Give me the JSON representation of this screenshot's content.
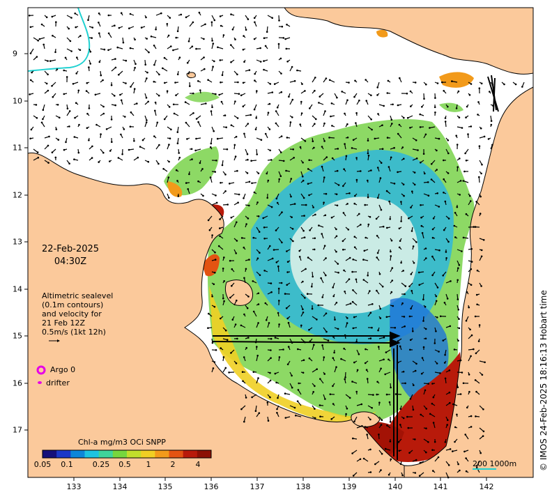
{
  "map": {
    "date": "22-Feb-2025",
    "time": "04:30Z",
    "altimetry_lines": [
      "Altimetric sealevel",
      "(0.1m contours)",
      "and velocity for",
      "21 Feb 12Z",
      "0.5m/s (1kt 12h)"
    ],
    "legend": {
      "argo": "Argo 0",
      "drifter": "drifter"
    },
    "colorbar": {
      "title": "Chl-a mg/m3 OCi SNPP",
      "ticks": [
        "0.05",
        "0.1",
        "0.25",
        "0.5",
        "1",
        "2",
        "4"
      ],
      "colors": [
        "#15107a",
        "#1b38c8",
        "#0e86d8",
        "#1ec3e0",
        "#3fd49a",
        "#76d63e",
        "#c2dd2c",
        "#f0cf24",
        "#f29a1a",
        "#e35312",
        "#b81a0a",
        "#8c1004"
      ]
    },
    "x_ticks": [
      "133",
      "134",
      "135",
      "136",
      "137",
      "138",
      "139",
      "140",
      "141",
      "142"
    ],
    "y_ticks": [
      "9",
      "10",
      "11",
      "12",
      "13",
      "14",
      "15",
      "16",
      "17"
    ],
    "scale_bar": "200  1000m",
    "credit": "© IMOS 24-Feb-2025 18:16:13 Hobart time",
    "colors": {
      "land": "#fbc99b",
      "ocean": "#ffffff",
      "coast": "#000000",
      "argo": "#e600e6",
      "drifter": "#e600e6",
      "boundary": "#1fd1d1"
    }
  }
}
